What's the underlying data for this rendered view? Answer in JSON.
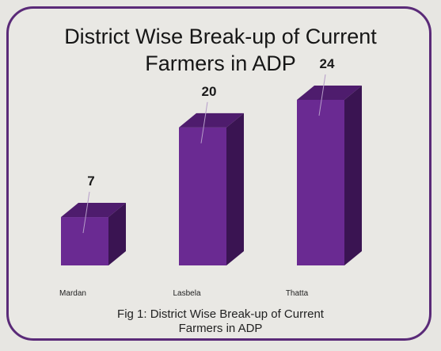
{
  "colors": {
    "bar_front": "#6a2a92",
    "bar_top": "#4e1c6d",
    "bar_side": "#3a1452",
    "frame": "#5a2a78",
    "background": "#e9e8e4"
  },
  "chart_data": {
    "type": "bar",
    "style": "3d",
    "title_line1": "District Wise Break-up of Current",
    "title_line2": "Farmers in ADP",
    "categories": [
      "Mardan",
      "Lasbela",
      "Thatta"
    ],
    "values": [
      7,
      20,
      24
    ],
    "data_labels": [
      "7",
      "20",
      "24"
    ],
    "ylim": [
      0,
      24
    ],
    "grid": false,
    "legend": "none",
    "caption_line1": "Fig 1: District Wise Break-up of Current",
    "caption_line2": "Farmers in ADP"
  }
}
